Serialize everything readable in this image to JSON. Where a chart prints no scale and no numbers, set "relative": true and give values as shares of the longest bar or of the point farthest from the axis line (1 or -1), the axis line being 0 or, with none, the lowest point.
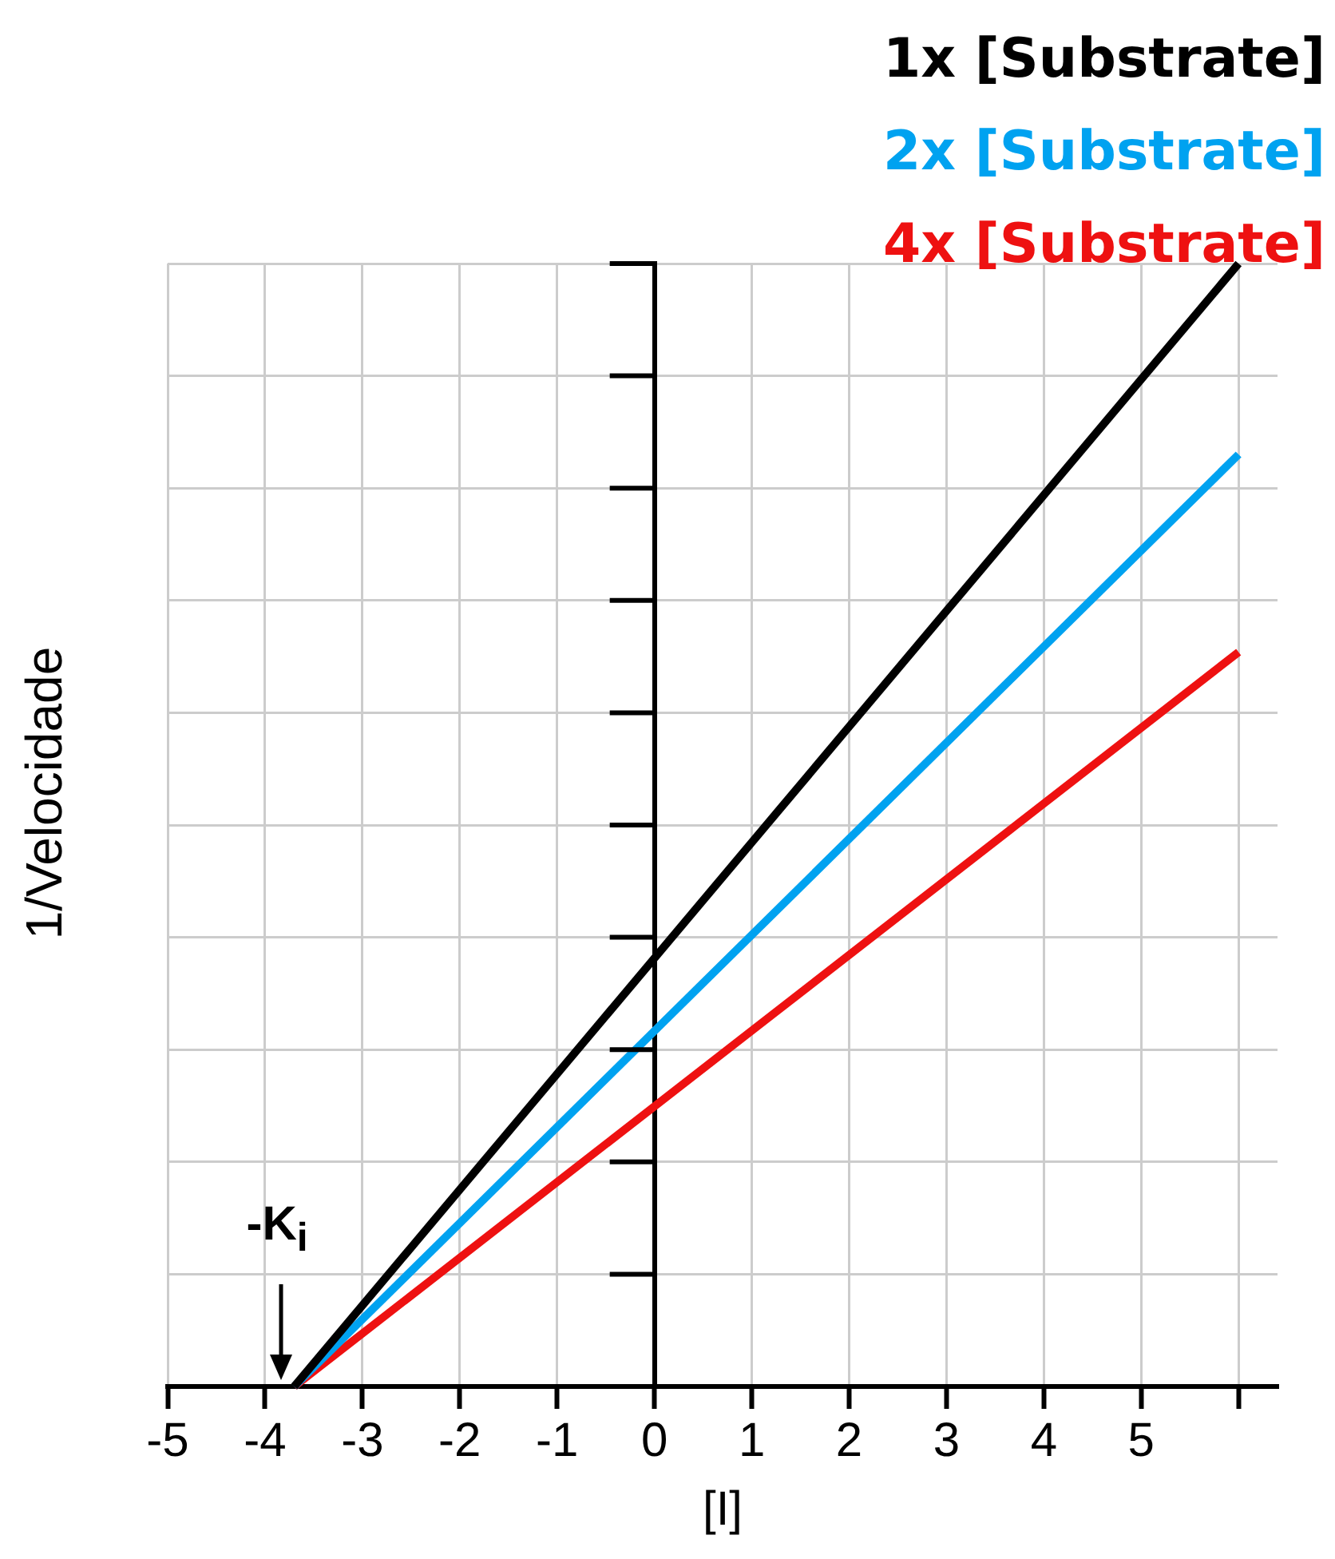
{
  "chart_data": {
    "type": "line",
    "xlabel": "[I]",
    "ylabel": "1/Velocidade",
    "relative": true,
    "xlim": [
      -5,
      6.4
    ],
    "xticks": [
      -5,
      -4,
      -3,
      -2,
      -1,
      0,
      1,
      2,
      3,
      4,
      5,
      {
        "value": 6,
        "label": null
      }
    ],
    "grid": true,
    "x": [
      -3.7,
      6
    ],
    "legend": "top right",
    "marker": "none",
    "line_style": "solid",
    "series": [
      {
        "name": "1x [Substrate]",
        "color": "#000000",
        "values": [
          0,
          1
        ]
      },
      {
        "name": "2x [Substrate]",
        "color": "#00a2f0",
        "values": [
          0,
          0.83
        ]
      },
      {
        "name": "4x [Substrate]",
        "color": "#ee1111",
        "values": [
          0,
          0.654
        ]
      }
    ],
    "annotations": [
      "-K$_{i}$"
    ]
  }
}
